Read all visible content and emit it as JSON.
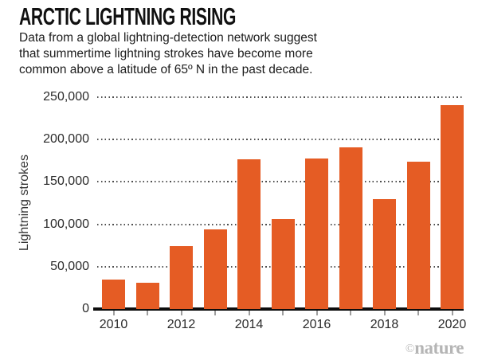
{
  "header": {
    "title": "ARCTIC LIGHTNING RISING",
    "subtitle_lines": [
      "Data from a global lightning-detection network suggest",
      "that summertime lightning strokes have become more",
      "common above a latitude of 65º N in the past decade."
    ]
  },
  "chart_data": {
    "type": "bar",
    "title": "ARCTIC LIGHTNING RISING",
    "categories": [
      "2010",
      "2011",
      "2012",
      "2013",
      "2014",
      "2015",
      "2016",
      "2017",
      "2018",
      "2019",
      "2020"
    ],
    "values": [
      35000,
      31000,
      74000,
      94000,
      177000,
      106000,
      178000,
      191000,
      130000,
      174000,
      241000
    ],
    "xlabel": "",
    "ylabel": "Lightning strokes",
    "ylim": [
      0,
      250000
    ],
    "y_ticks": [
      0,
      50000,
      100000,
      150000,
      200000,
      250000
    ],
    "y_tick_labels": [
      "0",
      "50,000",
      "100,000",
      "150,000",
      "200,000",
      "250,000"
    ],
    "x_tick_labels": [
      "2010",
      "",
      "2012",
      "",
      "2014",
      "",
      "2016",
      "",
      "2018",
      "",
      "2020"
    ],
    "grid": "horizontal-dotted",
    "legend": "none",
    "bar_color": "#e55c24",
    "axis_color": "#0d0d0d"
  },
  "footer": {
    "credit_symbol": "©",
    "credit_name": "nature"
  }
}
